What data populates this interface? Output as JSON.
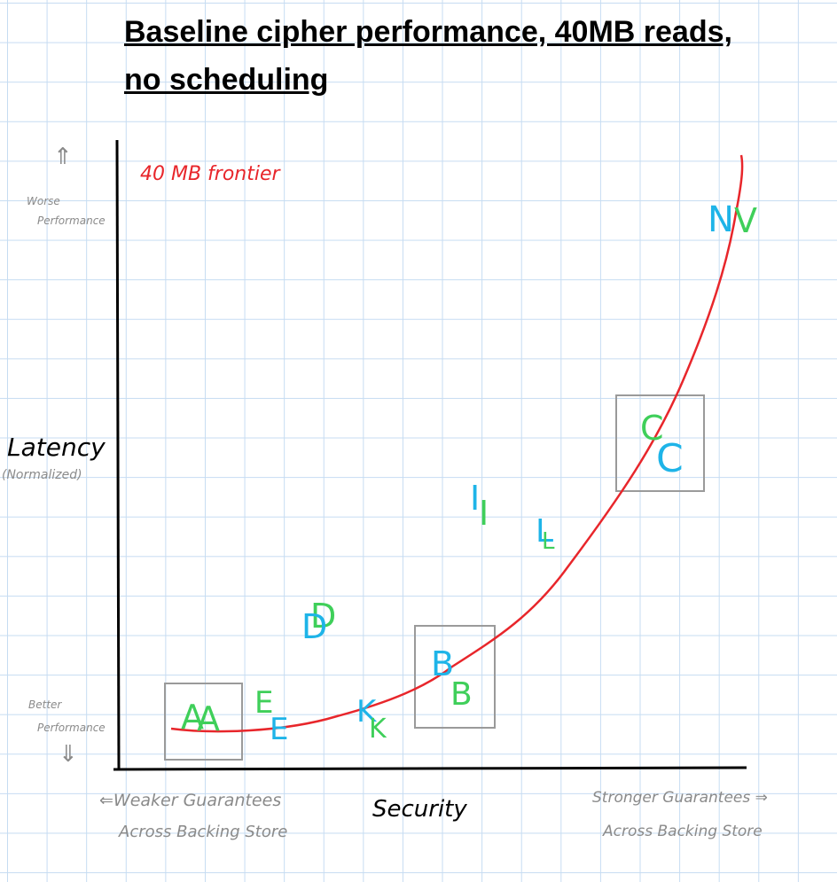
{
  "title_line1": "Baseline cipher performance, 40MB reads,",
  "title_line2": "no scheduling",
  "frontier_label": "40 MB frontier",
  "y_axis": {
    "label": "Latency",
    "sublabel": "(Normalized)",
    "top_annotation": [
      "Worse",
      "Performance"
    ],
    "bottom_annotation": [
      "Better",
      "Performance"
    ],
    "up_arrow": "⇑",
    "down_arrow": "⇓"
  },
  "x_axis": {
    "label": "Security",
    "left_annotation": [
      "⇐Weaker Guarantees",
      "Across Backing Store"
    ],
    "right_annotation": [
      "Stronger Guarantees ⇒",
      "Across Backing Store"
    ]
  },
  "colors": {
    "frontier": "#e8262b",
    "blue_marks": "#1eb4e8",
    "green_marks": "#3fcf5a",
    "boxes": "#9a9a9a",
    "grid": "#c6dcf2"
  },
  "marks": {
    "A_green": "A",
    "A_blue": "A",
    "E_green": "E",
    "E_blue": "E",
    "K_blue": "K",
    "K_green": "K",
    "D_green": "D",
    "D_blue": "D",
    "B_blue": "B",
    "B_green": "B",
    "I_blue": "I",
    "I_green": "I",
    "L_blue": "L",
    "L_green": "L",
    "C_green": "C",
    "C_blue": "C",
    "N_blue": "N",
    "N_green": "V"
  }
}
